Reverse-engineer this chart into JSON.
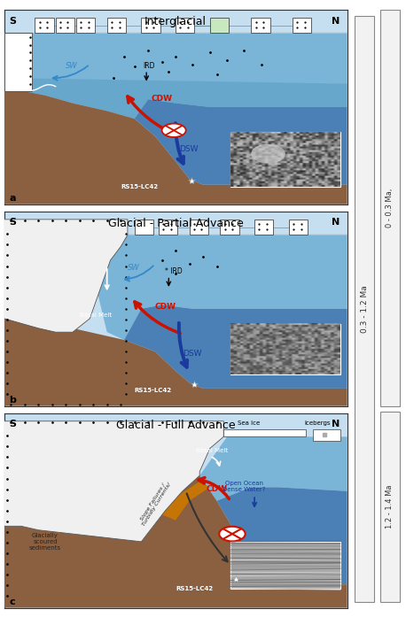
{
  "panel_a_title": "Interglacial",
  "panel_b_title": "Glacial - Partial Advance",
  "panel_c_title": "Glacial - Full Advance",
  "timeline": {
    "bar1_label": "0.3 - 1.2 Ma",
    "bar2_top_label": "0 - 0.3 Ma,",
    "bar2_bot_label": "1.2 - 1.4 Ma"
  },
  "colors": {
    "sky_light": "#c8dff0",
    "water_mid": "#7aaed0",
    "water_deep": "#4a7fb5",
    "sediment": "#8b6040",
    "ice_white": "#f0f0f0",
    "ice_border": "#555555",
    "red": "#cc1100",
    "blue_dark": "#1a3a9c",
    "blue_sw": "#3388cc",
    "white": "#ffffff",
    "black": "#111111",
    "green": "#55aa55",
    "orange": "#cc7700",
    "gray_photo": "#888888"
  }
}
